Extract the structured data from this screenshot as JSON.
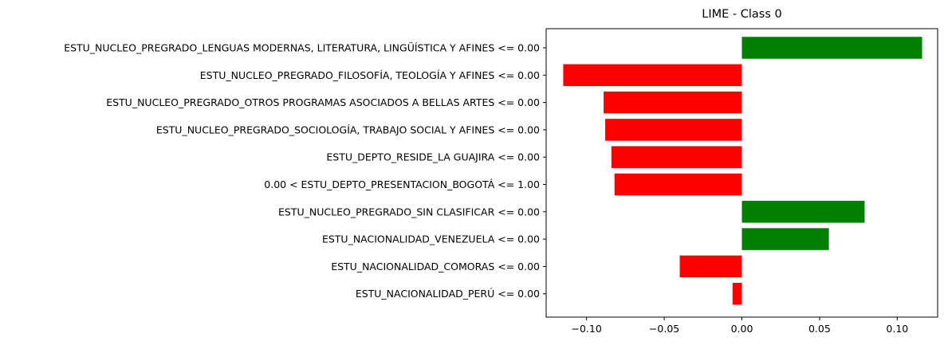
{
  "chart_data": {
    "type": "bar",
    "orientation": "horizontal",
    "title": "LIME - Class 0",
    "xlabel": "",
    "ylabel": "",
    "xlim": [
      -0.126,
      0.126
    ],
    "xticks": [
      -0.1,
      -0.05,
      0.0,
      0.05,
      0.1
    ],
    "xtick_labels": [
      "−0.10",
      "−0.05",
      "0.00",
      "0.05",
      "0.10"
    ],
    "grid": false,
    "legend": "none",
    "positive_color": "#008000",
    "negative_color": "#ff0000",
    "categories": [
      "ESTU_NUCLEO_PREGRADO_LENGUAS MODERNAS, LITERATURA, LINGÜÍSTICA Y AFINES <= 0.00",
      "ESTU_NUCLEO_PREGRADO_FILOSOFÍA, TEOLOGÍA Y AFINES <= 0.00",
      "ESTU_NUCLEO_PREGRADO_OTROS PROGRAMAS ASOCIADOS A BELLAS ARTES <= 0.00",
      "ESTU_NUCLEO_PREGRADO_SOCIOLOGÍA, TRABAJO SOCIAL Y AFINES <= 0.00",
      "ESTU_DEPTO_RESIDE_LA GUAJIRA <= 0.00",
      "0.00 < ESTU_DEPTO_PRESENTACION_BOGOTÁ <= 1.00",
      "ESTU_NUCLEO_PREGRADO_SIN CLASIFICAR <= 0.00",
      "ESTU_NACIONALIDAD_VENEZUELA <= 0.00",
      "ESTU_NACIONALIDAD_COMORAS <= 0.00",
      "ESTU_NACIONALIDAD_PERÚ <= 0.00"
    ],
    "values": [
      0.116,
      -0.115,
      -0.089,
      -0.088,
      -0.084,
      -0.082,
      0.079,
      0.056,
      -0.04,
      -0.006
    ]
  }
}
